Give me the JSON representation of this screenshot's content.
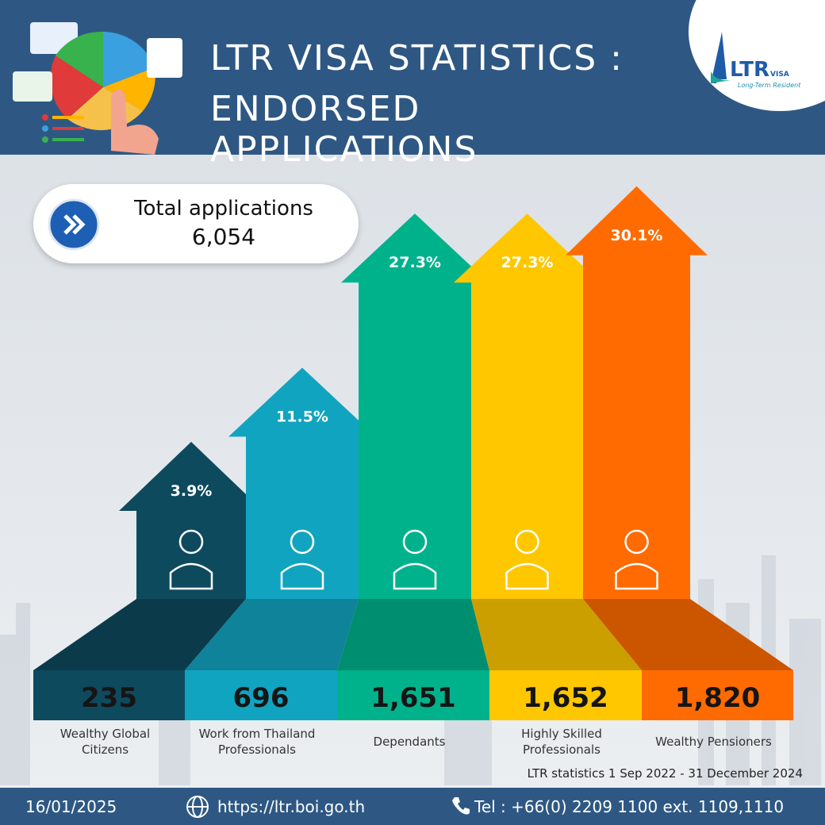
{
  "title": "LTR VISA STATISTICS :",
  "subtitle": "ENDORSED APPLICATIONS",
  "logo": {
    "brand": "LTR",
    "visa": "VISA",
    "tagline": "Long-Term Resident"
  },
  "total_label": "Total applications",
  "total_value": 6054,
  "total_value_label": "6,054",
  "chart_data": {
    "type": "arrow-bar",
    "categories": [
      "Wealthy Global Citizens",
      "Work from Thailand Professionals",
      "Dependants",
      "Highly Skilled Professionals",
      "Wealthy Pensioners"
    ],
    "values": [
      235,
      696,
      1651,
      1652,
      1820
    ],
    "value_labels": [
      "235",
      "696",
      "1,651",
      "1,652",
      "1,820"
    ],
    "shares": [
      3.9,
      11.5,
      27.3,
      27.3,
      30.1
    ],
    "share_labels": [
      "3.9%",
      "11.5%",
      "27.3%",
      "27.3%",
      "30.1%"
    ],
    "colors": [
      "#0e4a5e",
      "#11a4c0",
      "#00b28c",
      "#ffc700",
      "#ff6b00"
    ]
  },
  "note": "LTR statistics 1 Sep 2022 - 31 December 2024",
  "footer": {
    "date": "16/01/2025",
    "url": "https://ltr.boi.go.th",
    "phone": "Tel : +66(0) 2209 1100 ext. 1109,1110"
  }
}
